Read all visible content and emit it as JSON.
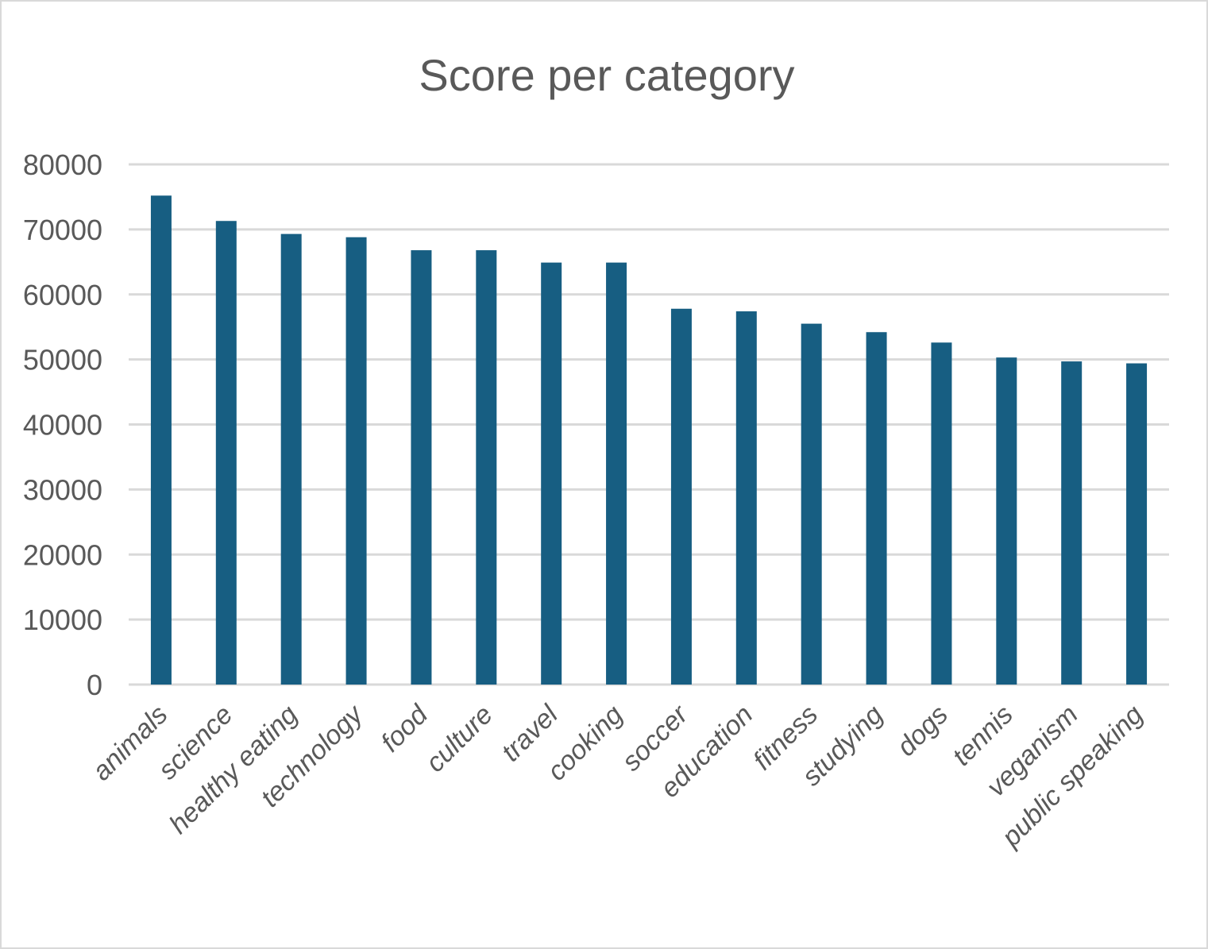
{
  "chart_data": {
    "type": "bar",
    "title": "Score per category",
    "xlabel": "",
    "ylabel": "",
    "ylim": [
      0,
      80000
    ],
    "yticks": [
      0,
      10000,
      20000,
      30000,
      40000,
      50000,
      60000,
      70000,
      80000
    ],
    "grid": true,
    "legend": "none",
    "bar_color": "#175e82",
    "categories": [
      "animals",
      "science",
      "healthy eating",
      "technology",
      "food",
      "culture",
      "travel",
      "cooking",
      "soccer",
      "education",
      "fitness",
      "studying",
      "dogs",
      "tennis",
      "veganism",
      "public speaking"
    ],
    "values": [
      75200,
      71300,
      69300,
      68800,
      66800,
      66800,
      64900,
      64900,
      57800,
      57400,
      55500,
      54200,
      52600,
      50300,
      49700,
      49400
    ]
  }
}
